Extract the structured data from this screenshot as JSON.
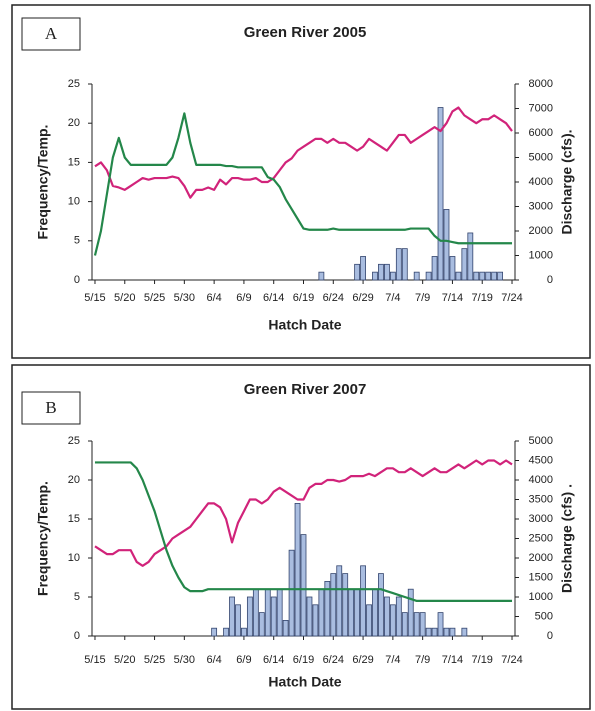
{
  "chart_data": [
    {
      "type": "bar",
      "panel_label": "A",
      "title": "Green River 2005",
      "x_label": "Hatch Date",
      "y_label": "Frequency/Temp.",
      "y2_label": "Discharge (cfs).",
      "categories": [
        "5/15",
        null,
        null,
        null,
        null,
        "5/20",
        null,
        null,
        null,
        null,
        "5/25",
        null,
        null,
        null,
        null,
        "5/30",
        null,
        null,
        null,
        null,
        "6/4",
        null,
        null,
        null,
        null,
        "6/9",
        null,
        null,
        null,
        null,
        "6/14",
        null,
        null,
        null,
        null,
        "6/19",
        null,
        null,
        null,
        null,
        "6/24",
        null,
        null,
        null,
        null,
        "6/29",
        null,
        null,
        null,
        null,
        "7/4",
        null,
        null,
        null,
        null,
        "7/9",
        null,
        null,
        null,
        null,
        "7/14",
        null,
        null,
        null,
        null,
        "7/19",
        null,
        null,
        null,
        null,
        "7/24"
      ],
      "ylim": [
        0,
        25
      ],
      "yticks": [
        0,
        5,
        10,
        15,
        20,
        25
      ],
      "y2lim": [
        0,
        8000
      ],
      "y2ticks": [
        0,
        1000,
        2000,
        3000,
        4000,
        5000,
        6000,
        7000,
        8000
      ],
      "series": [
        {
          "type": "bar",
          "color": "#a9bde0",
          "values": [
            0,
            0,
            0,
            0,
            0,
            0,
            0,
            0,
            0,
            0,
            0,
            0,
            0,
            0,
            0,
            0,
            0,
            0,
            0,
            0,
            0,
            0,
            0,
            0,
            0,
            0,
            0,
            0,
            0,
            0,
            0,
            0,
            0,
            0,
            0,
            0,
            0,
            0,
            1,
            0,
            0,
            0,
            0,
            0,
            2,
            3,
            0,
            1,
            2,
            2,
            1,
            4,
            4,
            0,
            1,
            0,
            1,
            3,
            22,
            9,
            3,
            1,
            4,
            6,
            1,
            1,
            1,
            1,
            1,
            0,
            0
          ]
        },
        {
          "type": "line",
          "color": "#d1237a",
          "values": [
            14.5,
            15,
            14,
            12,
            11.8,
            11.5,
            12,
            12.5,
            13,
            12.8,
            13,
            13,
            13,
            13.2,
            13,
            12,
            10.5,
            11.5,
            11.5,
            11.8,
            11.5,
            12.8,
            12.2,
            13,
            13,
            12.8,
            12.8,
            13,
            12.5,
            12.5,
            13,
            14,
            15,
            15.5,
            16.5,
            17,
            17.5,
            18,
            18,
            17.5,
            18,
            17.5,
            17.5,
            17,
            16.5,
            17,
            18,
            17.5,
            17,
            16.5,
            17.5,
            18.5,
            18.5,
            17.5,
            18,
            18.5,
            19,
            19.5,
            19,
            20,
            21.5,
            22,
            21,
            20.5,
            20,
            20.5,
            20.5,
            21,
            20.5,
            20,
            19
          ]
        },
        {
          "type": "line",
          "axis": "y2",
          "color": "#24874a",
          "values": [
            1000,
            2000,
            3500,
            5000,
            5800,
            5000,
            4700,
            4700,
            4700,
            4700,
            4700,
            4700,
            4700,
            5000,
            5800,
            6800,
            5600,
            4700,
            4700,
            4700,
            4700,
            4700,
            4650,
            4650,
            4600,
            4600,
            4600,
            4600,
            4600,
            4200,
            4100,
            3800,
            3300,
            2900,
            2500,
            2100,
            2050,
            2050,
            2050,
            2050,
            2100,
            2050,
            2050,
            2050,
            2050,
            2050,
            2050,
            2050,
            2050,
            2050,
            2050,
            2050,
            2050,
            2100,
            2100,
            2100,
            2100,
            1800,
            1600,
            1600,
            1550,
            1500,
            1500,
            1500,
            1500,
            1500,
            1500,
            1500,
            1500,
            1500,
            1500
          ]
        }
      ]
    },
    {
      "type": "bar",
      "panel_label": "B",
      "title": "Green River 2007",
      "x_label": "Hatch Date",
      "y_label": "Frequency/Temp.",
      "y2_label": "Discharge (cfs) .",
      "categories": [
        "5/15",
        null,
        null,
        null,
        null,
        "5/20",
        null,
        null,
        null,
        null,
        "5/25",
        null,
        null,
        null,
        null,
        "5/30",
        null,
        null,
        null,
        null,
        "6/4",
        null,
        null,
        null,
        null,
        "6/9",
        null,
        null,
        null,
        null,
        "6/14",
        null,
        null,
        null,
        null,
        "6/19",
        null,
        null,
        null,
        null,
        "6/24",
        null,
        null,
        null,
        null,
        "6/29",
        null,
        null,
        null,
        null,
        "7/4",
        null,
        null,
        null,
        null,
        "7/9",
        null,
        null,
        null,
        null,
        "7/14",
        null,
        null,
        null,
        null,
        "7/19",
        null,
        null,
        null,
        null,
        "7/24"
      ],
      "ylim": [
        0,
        25
      ],
      "yticks": [
        0,
        5,
        10,
        15,
        20,
        25
      ],
      "y2lim": [
        0,
        5000
      ],
      "y2ticks": [
        0,
        500,
        1000,
        1500,
        2000,
        2500,
        3000,
        3500,
        4000,
        4500,
        5000
      ],
      "series": [
        {
          "type": "bar",
          "color": "#a9bde0",
          "values": [
            0,
            0,
            0,
            0,
            0,
            0,
            0,
            0,
            0,
            0,
            0,
            0,
            0,
            0,
            0,
            0,
            0,
            0,
            0,
            0,
            1,
            0,
            1,
            5,
            4,
            1,
            5,
            6,
            3,
            6,
            5,
            6,
            2,
            11,
            17,
            13,
            5,
            4,
            6,
            7,
            8,
            9,
            8,
            6,
            6,
            9,
            4,
            6,
            8,
            5,
            4,
            5,
            3,
            6,
            3,
            3,
            1,
            1,
            3,
            1,
            1,
            0,
            1,
            0,
            0,
            0,
            0,
            0,
            0,
            0,
            0
          ]
        },
        {
          "type": "line",
          "color": "#d1237a",
          "values": [
            11.5,
            11,
            10.5,
            10.5,
            11,
            11,
            11,
            9.5,
            9,
            9.5,
            10.5,
            11,
            11.5,
            12.5,
            13,
            13.5,
            14,
            15,
            16,
            17,
            17,
            16.5,
            15,
            12,
            14.5,
            16,
            17.5,
            17.5,
            17,
            17.5,
            18.5,
            19,
            18.5,
            18,
            17.5,
            17.5,
            19,
            19.5,
            19.5,
            20,
            20,
            19.8,
            20,
            20.5,
            20.5,
            20.5,
            20.8,
            20.5,
            21,
            21.5,
            21.5,
            21,
            21,
            21.5,
            21,
            20.5,
            21,
            21.5,
            21,
            21,
            21.5,
            22,
            21.5,
            22,
            22.5,
            22,
            22.5,
            22.5,
            22,
            22.5,
            22
          ]
        },
        {
          "type": "line",
          "axis": "y2",
          "color": "#24874a",
          "values": [
            4450,
            4450,
            4450,
            4450,
            4450,
            4450,
            4450,
            4300,
            4000,
            3600,
            3200,
            2700,
            2200,
            1800,
            1500,
            1250,
            1150,
            1150,
            1150,
            1200,
            1200,
            1200,
            1200,
            1200,
            1200,
            1200,
            1200,
            1200,
            1200,
            1200,
            1200,
            1200,
            1200,
            1200,
            1200,
            1200,
            1200,
            1200,
            1200,
            1200,
            1200,
            1200,
            1200,
            1200,
            1200,
            1200,
            1200,
            1200,
            1200,
            1150,
            1100,
            1050,
            1000,
            950,
            900,
            900,
            900,
            900,
            900,
            900,
            900,
            900,
            900,
            900,
            900,
            900,
            900,
            900,
            900,
            900,
            900
          ]
        }
      ]
    }
  ]
}
